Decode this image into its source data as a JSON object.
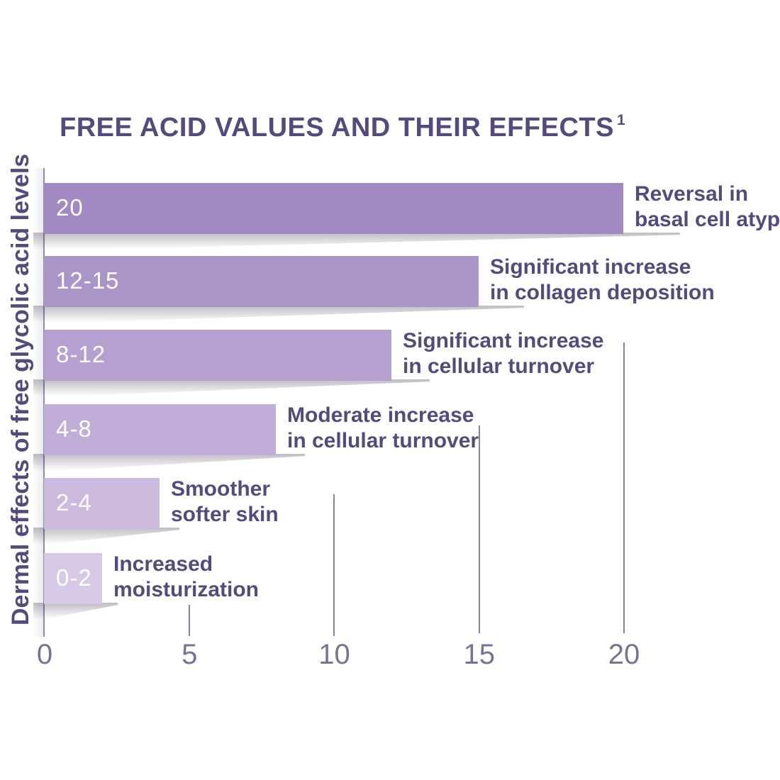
{
  "chart_data": {
    "type": "bar",
    "orientation": "horizontal",
    "title": "FREE ACID VALUES AND THEIR EFFECTS",
    "footnote_marker": "1",
    "ylabel": "Dermal effects of free glycolic acid levels",
    "xlabel": "",
    "xlim": [
      0,
      20
    ],
    "x_ticks": [
      "0",
      "5",
      "10",
      "15",
      "20"
    ],
    "legend_position": "none",
    "grid": "vertical tick lines only",
    "bars": [
      {
        "range_label": "20",
        "value": 20,
        "effect": "Reversal in basal cell atypia",
        "effect_lines": [
          "Reversal in",
          "basal cell atypia"
        ],
        "color": "#a289c1"
      },
      {
        "range_label": "12-15",
        "value": 15,
        "effect": "Significant increase in collagen deposition",
        "effect_lines": [
          "Significant increase",
          "in collagen deposition"
        ],
        "color": "#ab94c8"
      },
      {
        "range_label": "8-12",
        "value": 12,
        "effect": "Significant increase in cellular turnover",
        "effect_lines": [
          "Significant increase",
          "in cellular turnover"
        ],
        "color": "#b5a0d1"
      },
      {
        "range_label": "4-8",
        "value": 8,
        "effect": "Moderate increase in cellular turnover",
        "effect_lines": [
          "Moderate increase",
          "in cellular turnover"
        ],
        "color": "#c0add8"
      },
      {
        "range_label": "2-4",
        "value": 4,
        "effect": "Smoother softer skin",
        "effect_lines": [
          "Smoother",
          "softer skin"
        ],
        "color": "#cbbade"
      },
      {
        "range_label": "0-2",
        "value": 2,
        "effect": "Increased moisturization",
        "effect_lines": [
          "Increased",
          "moisturization"
        ],
        "color": "#d7cae6"
      }
    ],
    "colors": {
      "title_text": "#564a7c",
      "label_text": "#564a7c",
      "bar_value_text": "#ffffff",
      "axis_tick_text": "#7b7293",
      "gridline": "#6b6186",
      "background": "#ffffff"
    }
  }
}
